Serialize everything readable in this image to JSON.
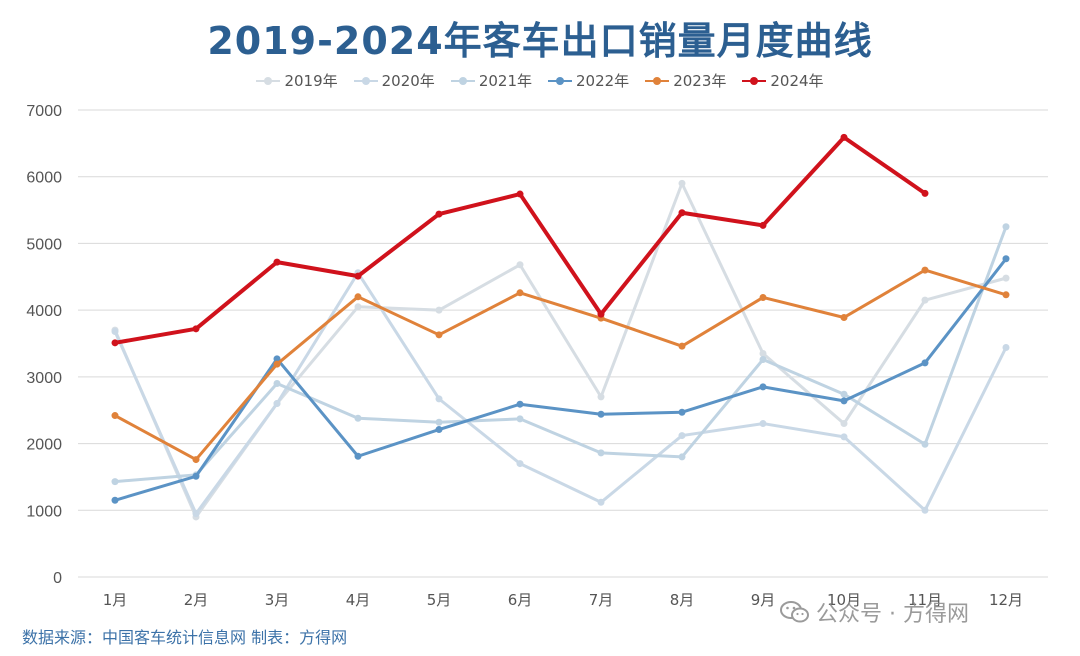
{
  "chart_data": {
    "type": "line",
    "title": "2019-2024年客车出口销量月度曲线",
    "categories": [
      "1月",
      "2月",
      "3月",
      "4月",
      "5月",
      "6月",
      "7月",
      "8月",
      "9月",
      "10月",
      "11月",
      "12月"
    ],
    "ylim": [
      0,
      7000
    ],
    "yticks": [
      0,
      1000,
      2000,
      3000,
      4000,
      5000,
      6000,
      7000
    ],
    "grid": true,
    "legend_position": "top-center",
    "series": [
      {
        "name": "2019年",
        "color": "#d6dde3",
        "width": 3,
        "values": [
          3700,
          900,
          2600,
          4050,
          4000,
          4680,
          2700,
          5900,
          3350,
          2300,
          4150,
          4480
        ]
      },
      {
        "name": "2020年",
        "color": "#c9d8e6",
        "width": 3,
        "values": [
          3680,
          950,
          2600,
          4560,
          2670,
          1700,
          1120,
          2120,
          2300,
          2100,
          1000,
          3440
        ]
      },
      {
        "name": "2021年",
        "color": "#bfd3e2",
        "width": 3,
        "values": [
          1430,
          1530,
          2900,
          2380,
          2320,
          2370,
          1860,
          1800,
          3260,
          2740,
          1990,
          5250
        ]
      },
      {
        "name": "2022年",
        "color": "#5b93c5",
        "width": 3,
        "values": [
          1150,
          1510,
          3270,
          1810,
          2210,
          2590,
          2440,
          2470,
          2850,
          2640,
          3210,
          4770
        ]
      },
      {
        "name": "2023年",
        "color": "#e0823a",
        "width": 3,
        "values": [
          2420,
          1760,
          3190,
          4200,
          3630,
          4260,
          3880,
          3460,
          4190,
          3890,
          4600,
          4230
        ]
      },
      {
        "name": "2024年",
        "color": "#d0121c",
        "width": 4,
        "values": [
          3510,
          3720,
          4720,
          4510,
          5440,
          5740,
          3940,
          5460,
          5270,
          6590,
          5750,
          null
        ]
      }
    ]
  },
  "source_text": "数据来源：中国客车统计信息网 制表：方得网",
  "watermark": {
    "text": "公众号 · 方得网",
    "icon": "wechat-icon"
  }
}
